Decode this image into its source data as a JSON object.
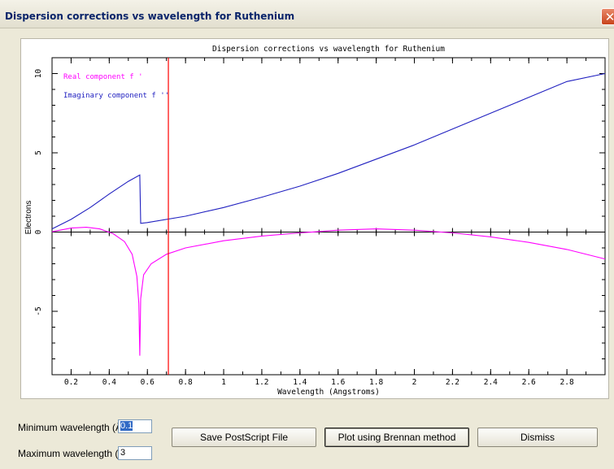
{
  "window": {
    "title": "Dispersion corrections vs wavelength for Ruthenium",
    "close_symbol": "✕"
  },
  "chart_data": {
    "type": "line",
    "title": "Dispersion corrections vs wavelength for Ruthenium",
    "xlabel": "Wavelength (Angstroms)",
    "ylabel": "Electrons",
    "xlim": [
      0.1,
      3.0
    ],
    "ylim": [
      -9,
      11
    ],
    "x_ticks": [
      "0.2",
      "0.4",
      "0.6",
      "0.8",
      "1",
      "1.2",
      "1.4",
      "1.6",
      "1.8",
      "2",
      "2.2",
      "2.4",
      "2.6",
      "2.8"
    ],
    "y_ticks": [
      "10",
      "5",
      "0",
      "-5"
    ],
    "grid": false,
    "legend_position": "top-left",
    "marker_line": {
      "x": 0.71,
      "color": "#ff0000"
    },
    "series": [
      {
        "name": "Real component f '",
        "color": "#ff00ff",
        "points": [
          [
            0.1,
            0.02
          ],
          [
            0.2,
            0.25
          ],
          [
            0.28,
            0.3
          ],
          [
            0.35,
            0.2
          ],
          [
            0.42,
            -0.1
          ],
          [
            0.48,
            -0.6
          ],
          [
            0.52,
            -1.4
          ],
          [
            0.545,
            -2.8
          ],
          [
            0.555,
            -4.5
          ],
          [
            0.56,
            -7.8
          ],
          [
            0.565,
            -4.2
          ],
          [
            0.58,
            -2.7
          ],
          [
            0.62,
            -2.0
          ],
          [
            0.7,
            -1.4
          ],
          [
            0.8,
            -1.0
          ],
          [
            1.0,
            -0.55
          ],
          [
            1.2,
            -0.25
          ],
          [
            1.4,
            -0.05
          ],
          [
            1.6,
            0.12
          ],
          [
            1.8,
            0.2
          ],
          [
            2.0,
            0.12
          ],
          [
            2.2,
            -0.05
          ],
          [
            2.4,
            -0.3
          ],
          [
            2.6,
            -0.65
          ],
          [
            2.8,
            -1.1
          ],
          [
            3.0,
            -1.7
          ]
        ]
      },
      {
        "name": "Imaginary component f ''",
        "color": "#2020c0",
        "points": [
          [
            0.1,
            0.2
          ],
          [
            0.2,
            0.8
          ],
          [
            0.3,
            1.55
          ],
          [
            0.4,
            2.4
          ],
          [
            0.5,
            3.2
          ],
          [
            0.56,
            3.6
          ],
          [
            0.565,
            0.55
          ],
          [
            0.6,
            0.6
          ],
          [
            0.8,
            1.0
          ],
          [
            1.0,
            1.55
          ],
          [
            1.2,
            2.2
          ],
          [
            1.4,
            2.9
          ],
          [
            1.6,
            3.7
          ],
          [
            1.8,
            4.6
          ],
          [
            2.0,
            5.5
          ],
          [
            2.2,
            6.5
          ],
          [
            2.4,
            7.5
          ],
          [
            2.6,
            8.5
          ],
          [
            2.8,
            9.5
          ],
          [
            3.0,
            10.0
          ]
        ]
      }
    ]
  },
  "controls": {
    "min_label": "Minimum wavelength (Å)",
    "min_value": "0.1",
    "max_label": "Maximum wavelength (Å)",
    "max_value": "3",
    "save_button": "Save PostScript File",
    "plot_button": "Plot using Brennan method",
    "dismiss_button": "Dismiss"
  }
}
